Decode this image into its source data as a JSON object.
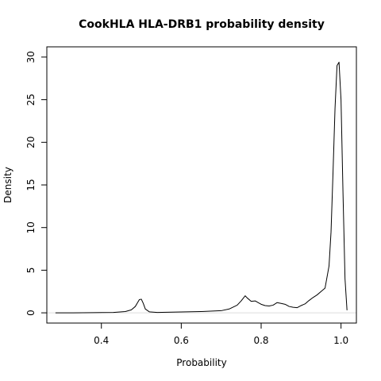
{
  "chart_data": {
    "type": "line",
    "title": "CookHLA HLA-DRB1 probability density",
    "xlabel": "Probability",
    "ylabel": "Density",
    "xlim": [
      0.2634,
      1.0385
    ],
    "ylim": [
      -1.2,
      31.2
    ],
    "xticks": [
      0.4,
      0.6,
      0.8,
      1.0
    ],
    "xtick_labels": [
      "0.4",
      "0.6",
      "0.8",
      "1.0"
    ],
    "yticks": [
      0,
      5,
      10,
      15,
      20,
      25,
      30
    ],
    "ytick_labels": [
      "0",
      "5",
      "10",
      "15",
      "20",
      "25",
      "30"
    ],
    "grid": false,
    "legend": "none",
    "zero_line": true,
    "line_color": "#000000",
    "zero_line_color": "#dddddd",
    "series": [
      {
        "x": [
          0.285,
          0.33,
          0.38,
          0.43,
          0.46,
          0.475,
          0.485,
          0.49,
          0.495,
          0.5,
          0.505,
          0.51,
          0.52,
          0.54,
          0.6,
          0.65,
          0.7,
          0.72,
          0.74,
          0.75,
          0.76,
          0.765,
          0.775,
          0.785,
          0.8,
          0.81,
          0.82,
          0.83,
          0.84,
          0.85,
          0.86,
          0.87,
          0.88,
          0.89,
          0.9,
          0.91,
          0.92,
          0.93,
          0.94,
          0.95,
          0.96,
          0.97,
          0.975,
          0.98,
          0.985,
          0.99,
          0.995,
          1.0,
          1.005,
          1.01,
          1.015
        ],
        "y": [
          0.0,
          0.0,
          0.02,
          0.05,
          0.15,
          0.35,
          0.75,
          1.15,
          1.55,
          1.6,
          1.1,
          0.45,
          0.12,
          0.05,
          0.1,
          0.15,
          0.25,
          0.45,
          0.9,
          1.4,
          2.0,
          1.75,
          1.35,
          1.4,
          1.0,
          0.85,
          0.8,
          0.9,
          1.2,
          1.1,
          1.0,
          0.75,
          0.65,
          0.6,
          0.85,
          1.05,
          1.45,
          1.8,
          2.1,
          2.5,
          2.9,
          5.5,
          9.5,
          16.5,
          24.0,
          29.0,
          29.4,
          25.0,
          14.0,
          4.0,
          0.3
        ]
      }
    ]
  }
}
